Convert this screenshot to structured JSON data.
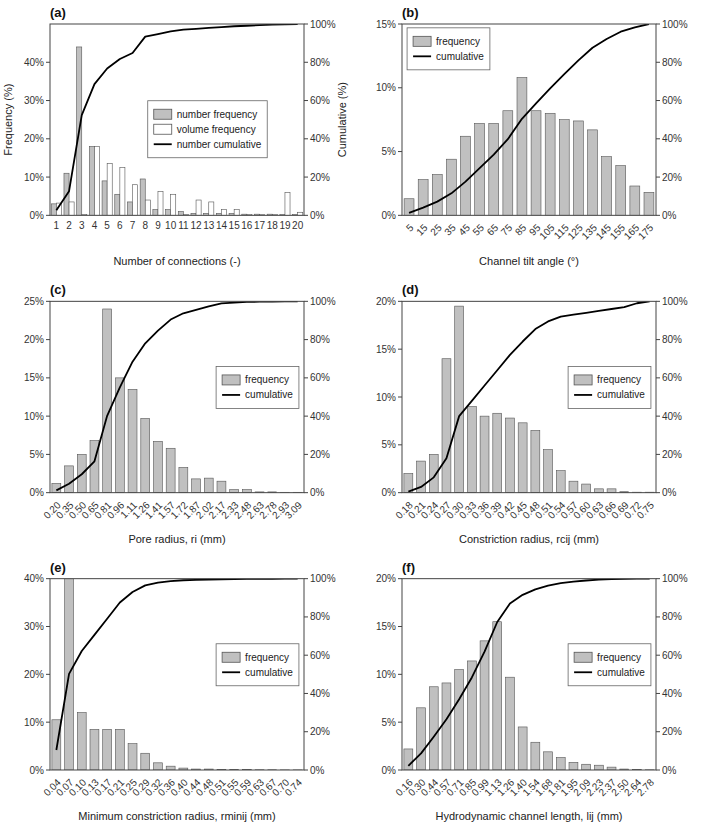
{
  "chart_data": [
    {
      "type": "bar",
      "title": "(a)",
      "xlabel": "Number of connections (-)",
      "ylabel": "Frequency (%)",
      "y2label": "Cumulative (%)",
      "categories": [
        "1",
        "2",
        "3",
        "4",
        "5",
        "6",
        "7",
        "8",
        "9",
        "10",
        "11",
        "12",
        "13",
        "14",
        "15",
        "16",
        "17",
        "18",
        "19",
        "20"
      ],
      "series": [
        {
          "name": "number frequency",
          "type": "bar",
          "color": "#c0c0c0",
          "values": [
            3.0,
            11.0,
            44.0,
            18.0,
            9.0,
            5.5,
            3.5,
            9.5,
            1.5,
            1.5,
            1.0,
            0.5,
            0.5,
            0.5,
            0.5,
            0.3,
            0.3,
            0.3,
            0.2,
            0.2
          ]
        },
        {
          "name": "volume frequency",
          "type": "bar",
          "color": "#ffffff",
          "values": [
            3.2,
            3.5,
            0.2,
            18.0,
            13.5,
            12.5,
            8.0,
            4.0,
            6.2,
            5.5,
            0.2,
            4.0,
            3.5,
            1.5,
            1.5,
            0.2,
            0.2,
            0.2,
            6.0,
            0.8
          ]
        },
        {
          "name": "number cumulative",
          "type": "line",
          "axis": "y2",
          "color": "#000000",
          "values": [
            2.7076,
            12.6354,
            52.3466,
            68.5921,
            76.7148,
            81.6787,
            84.8375,
            93.4116,
            94.7653,
            96.1191,
            97.0217,
            97.4729,
            97.9242,
            98.3755,
            98.8267,
            99.0975,
            99.3682,
            99.639,
            99.8195,
            100
          ]
        }
      ],
      "ylim": [
        0,
        50
      ],
      "yticks": [
        {
          "value": 0,
          "label": "0%"
        },
        {
          "value": 10,
          "label": "10%"
        },
        {
          "value": 20,
          "label": "20%"
        },
        {
          "value": 30,
          "label": "30%"
        },
        {
          "value": 40,
          "label": "40%"
        }
      ],
      "y2lim": [
        0,
        100
      ],
      "y2ticks": [
        {
          "value": 0,
          "label": "0%"
        },
        {
          "value": 20,
          "label": "20%"
        },
        {
          "value": 40,
          "label": "40%"
        },
        {
          "value": 60,
          "label": "60%"
        },
        {
          "value": 80,
          "label": "80%"
        },
        {
          "value": 100,
          "label": "100%"
        }
      ],
      "grid": false,
      "legend": "center"
    },
    {
      "type": "bar",
      "title": "(b)",
      "xlabel": "Channel tilt angle (°)",
      "categories": [
        "5",
        "15",
        "25",
        "35",
        "45",
        "55",
        "65",
        "75",
        "85",
        "95",
        "105",
        "115",
        "125",
        "135",
        "145",
        "155",
        "165",
        "175"
      ],
      "series": [
        {
          "name": "frequency",
          "type": "bar",
          "color": "#c0c0c0",
          "values": [
            1.3,
            2.8,
            3.2,
            4.4,
            6.2,
            7.2,
            7.2,
            8.2,
            10.8,
            8.2,
            8.0,
            7.5,
            7.4,
            6.7,
            4.6,
            3.9,
            2.3,
            1.8
          ]
        },
        {
          "name": "cumulative",
          "type": "line",
          "axis": "y2",
          "color": "#000000",
          "values": [
            1.2783,
            4.0315,
            7.178,
            11.5044,
            17.6008,
            24.6804,
            31.7601,
            39.823,
            50.4425,
            58.5054,
            66.3717,
            73.7463,
            81.0226,
            87.6106,
            92.1337,
            95.9685,
            98.2301,
            100
          ]
        }
      ],
      "ylim": [
        0,
        15
      ],
      "yticks": [
        {
          "value": 0,
          "label": "0%"
        },
        {
          "value": 5,
          "label": "5%"
        },
        {
          "value": 10,
          "label": "10%"
        },
        {
          "value": 15,
          "label": "15%"
        }
      ],
      "y2lim": [
        0,
        100
      ],
      "y2ticks": [
        {
          "value": 0,
          "label": "0%"
        },
        {
          "value": 20,
          "label": "20%"
        },
        {
          "value": 40,
          "label": "40%"
        },
        {
          "value": 60,
          "label": "60%"
        },
        {
          "value": 80,
          "label": "80%"
        },
        {
          "value": 100,
          "label": "100%"
        }
      ],
      "grid": false,
      "legend": "upper left"
    },
    {
      "type": "bar",
      "title": "(c)",
      "xlabel": "Pore radius, ri (mm)",
      "categories": [
        "0.20",
        "0.35",
        "0.50",
        "0.65",
        "0.81",
        "0.96",
        "1.11",
        "1.26",
        "1.41",
        "1.57",
        "1.72",
        "1.87",
        "2.02",
        "2.17",
        "2.33",
        "2.48",
        "2.63",
        "2.78",
        "2.93",
        "3.09"
      ],
      "series": [
        {
          "name": "frequency",
          "type": "bar",
          "color": "#c0c0c0",
          "values": [
            1.2,
            3.5,
            5.0,
            6.8,
            24.0,
            15.0,
            13.5,
            9.7,
            6.7,
            5.8,
            3.3,
            1.8,
            1.9,
            1.5,
            0.4,
            0.4,
            0.1,
            0.1,
            0.05,
            0.05
          ]
        },
        {
          "name": "cumulative",
          "type": "line",
          "axis": "y2",
          "color": "#000000",
          "values": [
            1.1905,
            4.6627,
            9.623,
            16.369,
            40.1786,
            55.0595,
            68.4524,
            78.0754,
            84.7222,
            90.4762,
            93.75,
            95.5357,
            97.4206,
            98.9087,
            99.3056,
            99.7024,
            99.8016,
            99.9008,
            99.9504,
            100
          ]
        }
      ],
      "ylim": [
        0,
        25
      ],
      "yticks": [
        {
          "value": 0,
          "label": "0%"
        },
        {
          "value": 5,
          "label": "5%"
        },
        {
          "value": 10,
          "label": "10%"
        },
        {
          "value": 15,
          "label": "15%"
        },
        {
          "value": 20,
          "label": "20%"
        },
        {
          "value": 25,
          "label": "25%"
        }
      ],
      "y2lim": [
        0,
        100
      ],
      "y2ticks": [
        {
          "value": 0,
          "label": "0%"
        },
        {
          "value": 20,
          "label": "20%"
        },
        {
          "value": 40,
          "label": "40%"
        },
        {
          "value": 60,
          "label": "60%"
        },
        {
          "value": 80,
          "label": "80%"
        },
        {
          "value": 100,
          "label": "100%"
        }
      ],
      "grid": false,
      "legend": "right"
    },
    {
      "type": "bar",
      "title": "(d)",
      "xlabel": "Constriction radius, rcij (mm)",
      "categories": [
        "0.18",
        "0.21",
        "0.24",
        "0.27",
        "0.30",
        "0.33",
        "0.36",
        "0.39",
        "0.42",
        "0.45",
        "0.48",
        "0.51",
        "0.54",
        "0.57",
        "0.60",
        "0.63",
        "0.66",
        "0.69",
        "0.72",
        "0.75"
      ],
      "series": [
        {
          "name": "frequency",
          "type": "bar",
          "color": "#c0c0c0",
          "values": [
            2.0,
            3.3,
            4.0,
            14.0,
            19.5,
            9.0,
            8.0,
            8.3,
            7.8,
            7.3,
            6.5,
            4.5,
            2.3,
            1.2,
            0.9,
            0.4,
            0.4,
            0.1,
            0.05,
            0.05
          ]
        },
        {
          "name": "cumulative",
          "type": "line",
          "axis": "y2",
          "color": "#000000",
          "values": [
            0.5,
            3.0,
            8.0,
            18.0,
            40.0,
            48.0,
            56.0,
            64.0,
            72.0,
            79.0,
            85.5,
            89.5,
            92.0,
            93.0,
            94.0,
            95.0,
            96.0,
            97.0,
            99.0,
            100.0
          ]
        }
      ],
      "ylim": [
        0,
        20
      ],
      "yticks": [
        {
          "value": 0,
          "label": "0%"
        },
        {
          "value": 5,
          "label": "5%"
        },
        {
          "value": 10,
          "label": "10%"
        },
        {
          "value": 15,
          "label": "15%"
        },
        {
          "value": 20,
          "label": "20%"
        }
      ],
      "y2lim": [
        0,
        100
      ],
      "y2ticks": [
        {
          "value": 0,
          "label": "0%"
        },
        {
          "value": 20,
          "label": "20%"
        },
        {
          "value": 40,
          "label": "40%"
        },
        {
          "value": 60,
          "label": "60%"
        },
        {
          "value": 80,
          "label": "80%"
        },
        {
          "value": 100,
          "label": "100%"
        }
      ],
      "grid": false,
      "legend": "right"
    },
    {
      "type": "bar",
      "title": "(e)",
      "xlabel": "Minimum constriction radius, rminij (mm)",
      "categories": [
        "0.04",
        "0.07",
        "0.10",
        "0.13",
        "0.17",
        "0.21",
        "0.25",
        "0.29",
        "0.32",
        "0.36",
        "0.40",
        "0.44",
        "0.48",
        "0.51",
        "0.55",
        "0.59",
        "0.63",
        "0.67",
        "0.70",
        "0.74"
      ],
      "series": [
        {
          "name": "frequency",
          "type": "bar",
          "color": "#c0c0c0",
          "values": [
            10.5,
            40.0,
            12.0,
            8.5,
            8.5,
            8.5,
            5.5,
            3.5,
            1.5,
            0.8,
            0.4,
            0.2,
            0.2,
            0.1,
            0.1,
            0.1,
            0.05,
            0.05,
            0.02,
            0.02
          ]
        },
        {
          "name": "cumulative",
          "type": "line",
          "axis": "y2",
          "color": "#000000",
          "values": [
            10.4436,
            50.2288,
            62.1643,
            70.6187,
            79.073,
            87.5274,
            92.9978,
            96.479,
            97.971,
            98.7667,
            99.1645,
            99.3634,
            99.5624,
            99.6618,
            99.7613,
            99.8608,
            99.9105,
            99.9602,
            99.9801,
            100
          ]
        }
      ],
      "ylim": [
        0,
        40
      ],
      "yticks": [
        {
          "value": 0,
          "label": "0%"
        },
        {
          "value": 10,
          "label": "10%"
        },
        {
          "value": 20,
          "label": "20%"
        },
        {
          "value": 30,
          "label": "30%"
        },
        {
          "value": 40,
          "label": "40%"
        }
      ],
      "y2lim": [
        0,
        100
      ],
      "y2ticks": [
        {
          "value": 0,
          "label": "0%"
        },
        {
          "value": 20,
          "label": "20%"
        },
        {
          "value": 40,
          "label": "40%"
        },
        {
          "value": 60,
          "label": "60%"
        },
        {
          "value": 80,
          "label": "80%"
        },
        {
          "value": 100,
          "label": "100%"
        }
      ],
      "grid": false,
      "legend": "right"
    },
    {
      "type": "bar",
      "title": "(f)",
      "xlabel": "Hydrodynamic channel length, lij (mm)",
      "categories": [
        "0.16",
        "0.30",
        "0.44",
        "0.57",
        "0.71",
        "0.85",
        "0.99",
        "1.13",
        "1.26",
        "1.40",
        "1.54",
        "1.68",
        "1.81",
        "1.95",
        "2.09",
        "2.23",
        "2.37",
        "2.50",
        "2.64",
        "2.78"
      ],
      "series": [
        {
          "name": "frequency",
          "type": "bar",
          "color": "#c0c0c0",
          "values": [
            2.2,
            6.5,
            8.7,
            9.1,
            10.5,
            11.4,
            13.5,
            15.5,
            9.7,
            4.5,
            2.9,
            1.9,
            1.3,
            0.8,
            0.6,
            0.5,
            0.3,
            0.1,
            0.05,
            0.02
          ]
        },
        {
          "name": "cumulative",
          "type": "line",
          "axis": "y2",
          "color": "#000000",
          "values": [
            2.1985,
            8.6939,
            17.3878,
            26.4815,
            36.9741,
            48.3661,
            61.8567,
            77.3459,
            87.0391,
            91.5359,
            94.4339,
            96.3326,
            97.6317,
            98.4311,
            99.0307,
            99.5303,
            99.8301,
            99.93,
            99.98,
            100
          ]
        }
      ],
      "ylim": [
        0,
        20
      ],
      "yticks": [
        {
          "value": 0,
          "label": "0%"
        },
        {
          "value": 5,
          "label": "5%"
        },
        {
          "value": 10,
          "label": "10%"
        },
        {
          "value": 15,
          "label": "15%"
        },
        {
          "value": 20,
          "label": "20%"
        }
      ],
      "y2lim": [
        0,
        100
      ],
      "y2ticks": [
        {
          "value": 0,
          "label": "0%"
        },
        {
          "value": 20,
          "label": "20%"
        },
        {
          "value": 40,
          "label": "40%"
        },
        {
          "value": 60,
          "label": "60%"
        },
        {
          "value": 80,
          "label": "80%"
        },
        {
          "value": 100,
          "label": "100%"
        }
      ],
      "grid": false,
      "legend": "right"
    }
  ]
}
